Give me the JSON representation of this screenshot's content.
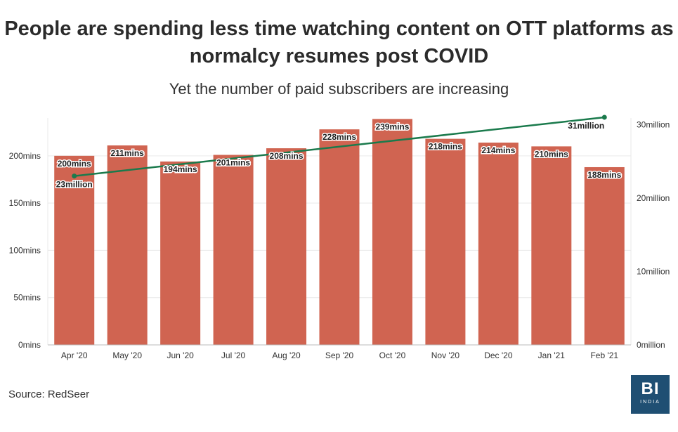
{
  "title": "People are spending less time watching content on OTT platforms as normalcy resumes post COVID",
  "subtitle": "Yet the number of paid subscribers are increasing",
  "source": "Source: RedSeer",
  "logo": {
    "main": "BI",
    "sub": "INDIA"
  },
  "colors": {
    "bar": "#d06451",
    "line": "#1a7a4c"
  },
  "chart_data": {
    "type": "bar",
    "categories": [
      "Apr '20",
      "May '20",
      "Jun '20",
      "Jul '20",
      "Aug '20",
      "Sep '20",
      "Oct '20",
      "Nov '20",
      "Dec '20",
      "Jan '21",
      "Feb '21"
    ],
    "series": [
      {
        "values": [
          200,
          211,
          194,
          201,
          208,
          228,
          239,
          218,
          214,
          210,
          188
        ],
        "labels": [
          "200mins",
          "211mins",
          "194mins",
          "201mins",
          "208mins",
          "228mins",
          "239mins",
          "218mins",
          "214mins",
          "210mins",
          "188mins"
        ],
        "axis": "left"
      },
      {
        "type": "line",
        "axis": "right",
        "points": [
          {
            "category": "Apr '20",
            "value": 23,
            "label": "23million"
          },
          {
            "category": "Feb '21",
            "value": 31,
            "label": "31million"
          }
        ]
      }
    ],
    "ylim": [
      0,
      240
    ],
    "y_ticks": [
      "0mins",
      "50mins",
      "100mins",
      "150mins",
      "200mins"
    ],
    "y2lim": [
      0,
      31
    ],
    "y2_ticks": [
      "0million",
      "10million",
      "20million",
      "30million"
    ],
    "grid": true
  }
}
